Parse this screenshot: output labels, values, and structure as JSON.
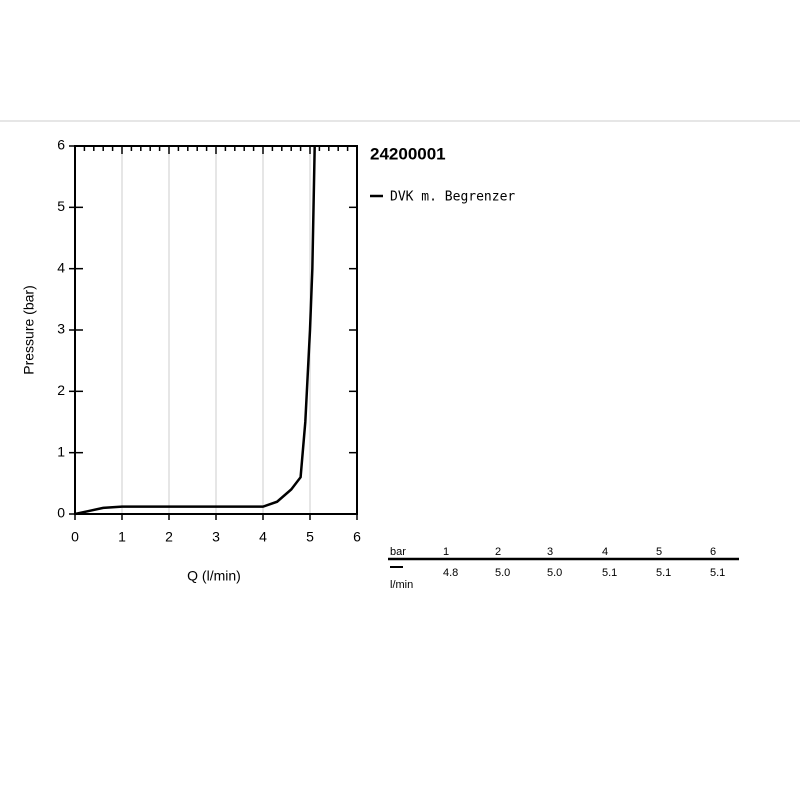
{
  "chart_data": {
    "type": "line",
    "title": "24200001",
    "x_label": "Q (l/min)",
    "y_label": "Pressure (bar)",
    "series": [
      {
        "name": "DVK m. Begrenzer",
        "color": "#000000",
        "x": [
          0,
          0.3,
          0.6,
          1,
          2,
          3,
          4,
          4.3,
          4.6,
          4.8,
          4.9,
          5.0,
          5.05,
          5.1
        ],
        "values": [
          0,
          0.05,
          0.1,
          0.12,
          0.12,
          0.12,
          0.12,
          0.2,
          0.4,
          0.6,
          1.5,
          3.0,
          4.0,
          6.0
        ]
      }
    ],
    "xlim": [
      0,
      6
    ],
    "ylim": [
      0,
      6
    ],
    "xticks": [
      0,
      1,
      2,
      3,
      4,
      5,
      6
    ],
    "yticks": [
      0,
      1,
      2,
      3,
      4,
      5,
      6
    ],
    "grid": "x"
  },
  "table": {
    "header": [
      "bar",
      "1",
      "2",
      "3",
      "4",
      "5",
      "6"
    ],
    "unit": "l/min",
    "row": [
      "4.8",
      "5.0",
      "5.0",
      "5.1",
      "5.1",
      "5.1"
    ]
  }
}
